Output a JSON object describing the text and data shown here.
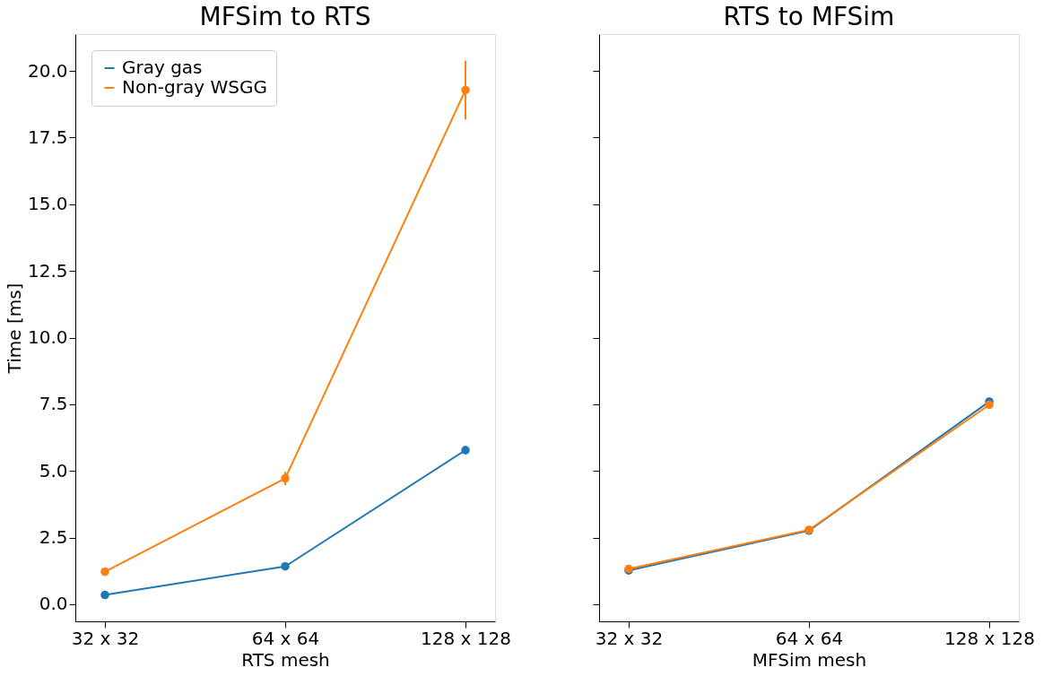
{
  "chart_data": [
    {
      "type": "line",
      "title": "MFSim to RTS",
      "xlabel": "RTS mesh",
      "ylabel": "Time [ms]",
      "categories": [
        "32 x 32",
        "64 x 64",
        "128 x 128"
      ],
      "ylim": [
        -0.64,
        21.38
      ],
      "yticks": [
        {
          "value": 0,
          "label": "0.0"
        },
        2.5,
        {
          "value": 5,
          "label": "5.0"
        },
        7.5,
        {
          "value": 10,
          "label": "10.0"
        },
        12.5,
        {
          "value": 15,
          "label": "15.0"
        },
        17.5,
        {
          "value": 20,
          "label": "20.0"
        }
      ],
      "legend": "top left",
      "marker": "circle",
      "line_style": "solid",
      "grid": false,
      "series": [
        {
          "name": "Gray gas",
          "color": "#1f77b4",
          "values": [
            0.35,
            1.42,
            5.78
          ],
          "errors": [
            0.05,
            0.08,
            0.15
          ]
        },
        {
          "name": "Non-gray WSGG",
          "color": "#ff7f0e",
          "values": [
            1.22,
            4.72,
            19.28
          ],
          "errors": [
            0.08,
            0.25,
            1.1
          ]
        }
      ]
    },
    {
      "type": "line",
      "title": "RTS to MFSim",
      "xlabel": "MFSim mesh",
      "categories": [
        "32 x 32",
        "64 x 64",
        "128 x 128"
      ],
      "ylim": [
        -0.64,
        21.38
      ],
      "yticks": [
        0,
        2.5,
        5,
        7.5,
        10,
        12.5,
        15,
        17.5,
        20
      ],
      "tick_labels": "x",
      "legend": false,
      "marker": "circle",
      "line_style": "solid",
      "grid": false,
      "series": [
        {
          "color": "#1f77b4",
          "values": [
            1.27,
            2.76,
            7.6
          ],
          "errors": [
            0.05,
            0.05,
            0.15
          ]
        },
        {
          "color": "#ff7f0e",
          "values": [
            1.33,
            2.79,
            7.48
          ],
          "errors": [
            0.05,
            0.05,
            0.15
          ]
        }
      ]
    }
  ]
}
